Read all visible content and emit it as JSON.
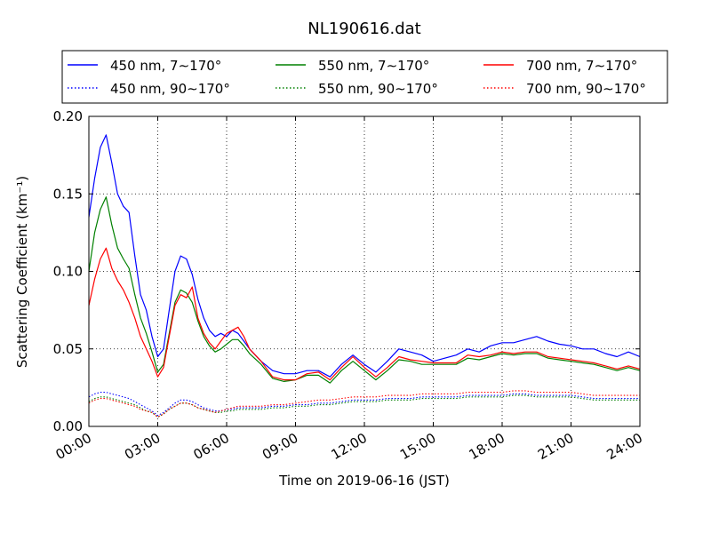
{
  "chart_data": {
    "type": "line",
    "title": "NL190616.dat",
    "xlabel": "Time on 2019-06-16 (JST)",
    "ylabel": "Scattering Coefficient (km⁻¹)",
    "xlim": [
      0,
      24
    ],
    "ylim": [
      0,
      0.2
    ],
    "x_tick_values": [
      0,
      3,
      6,
      9,
      12,
      15,
      18,
      21,
      24
    ],
    "x_tick_labels": [
      "00:00",
      "03:00",
      "06:00",
      "09:00",
      "12:00",
      "15:00",
      "18:00",
      "21:00",
      "24:00"
    ],
    "y_tick_values": [
      0,
      0.05,
      0.1,
      0.15,
      0.2
    ],
    "y_tick_labels": [
      "0.00",
      "0.05",
      "0.10",
      "0.15",
      "0.20"
    ],
    "grid": true,
    "legend_position": "top",
    "x": [
      0,
      0.25,
      0.5,
      0.75,
      1,
      1.25,
      1.5,
      1.75,
      2,
      2.25,
      2.5,
      2.75,
      3,
      3.25,
      3.5,
      3.75,
      4,
      4.25,
      4.5,
      4.75,
      5,
      5.25,
      5.5,
      5.75,
      6,
      6.25,
      6.5,
      6.75,
      7,
      7.5,
      8,
      8.5,
      9,
      9.5,
      10,
      10.5,
      11,
      11.5,
      12,
      12.5,
      13,
      13.5,
      14,
      14.5,
      15,
      15.5,
      16,
      16.5,
      17,
      17.5,
      18,
      18.5,
      19,
      19.5,
      20,
      20.5,
      21,
      21.5,
      22,
      22.5,
      23,
      23.5,
      24
    ],
    "series": [
      {
        "name": "450 nm, 7∼170°",
        "color": "#0000ff",
        "style": "solid",
        "values": [
          0.135,
          0.16,
          0.18,
          0.188,
          0.17,
          0.15,
          0.142,
          0.138,
          0.11,
          0.085,
          0.075,
          0.058,
          0.045,
          0.05,
          0.075,
          0.1,
          0.11,
          0.108,
          0.098,
          0.082,
          0.07,
          0.062,
          0.058,
          0.06,
          0.058,
          0.062,
          0.06,
          0.055,
          0.05,
          0.042,
          0.036,
          0.034,
          0.034,
          0.036,
          0.036,
          0.032,
          0.04,
          0.046,
          0.04,
          0.035,
          0.042,
          0.05,
          0.048,
          0.046,
          0.042,
          0.044,
          0.046,
          0.05,
          0.048,
          0.052,
          0.054,
          0.054,
          0.056,
          0.058,
          0.055,
          0.053,
          0.052,
          0.05,
          0.05,
          0.047,
          0.045,
          0.048,
          0.045
        ]
      },
      {
        "name": "450 nm, 90∼170°",
        "color": "#0000ff",
        "style": "dotted",
        "values": [
          0.019,
          0.021,
          0.022,
          0.022,
          0.021,
          0.02,
          0.019,
          0.018,
          0.016,
          0.014,
          0.012,
          0.01,
          0.007,
          0.009,
          0.012,
          0.015,
          0.017,
          0.017,
          0.016,
          0.014,
          0.012,
          0.011,
          0.01,
          0.01,
          0.011,
          0.011,
          0.012,
          0.012,
          0.012,
          0.012,
          0.013,
          0.013,
          0.014,
          0.014,
          0.015,
          0.015,
          0.016,
          0.017,
          0.017,
          0.017,
          0.018,
          0.018,
          0.018,
          0.019,
          0.019,
          0.019,
          0.019,
          0.02,
          0.02,
          0.02,
          0.02,
          0.021,
          0.021,
          0.02,
          0.02,
          0.02,
          0.02,
          0.019,
          0.018,
          0.018,
          0.018,
          0.018,
          0.018
        ]
      },
      {
        "name": "550 nm, 7∼170°",
        "color": "#008000",
        "style": "solid",
        "values": [
          0.1,
          0.125,
          0.14,
          0.148,
          0.13,
          0.115,
          0.108,
          0.102,
          0.085,
          0.07,
          0.06,
          0.048,
          0.035,
          0.04,
          0.06,
          0.08,
          0.088,
          0.086,
          0.08,
          0.068,
          0.058,
          0.052,
          0.048,
          0.05,
          0.053,
          0.056,
          0.056,
          0.052,
          0.047,
          0.04,
          0.031,
          0.029,
          0.03,
          0.033,
          0.033,
          0.028,
          0.036,
          0.042,
          0.036,
          0.03,
          0.036,
          0.043,
          0.042,
          0.04,
          0.04,
          0.04,
          0.04,
          0.044,
          0.043,
          0.045,
          0.047,
          0.046,
          0.047,
          0.047,
          0.044,
          0.043,
          0.042,
          0.041,
          0.04,
          0.038,
          0.036,
          0.038,
          0.036
        ]
      },
      {
        "name": "550 nm, 90∼170°",
        "color": "#008000",
        "style": "dotted",
        "values": [
          0.016,
          0.018,
          0.019,
          0.019,
          0.018,
          0.017,
          0.016,
          0.015,
          0.014,
          0.012,
          0.01,
          0.009,
          0.006,
          0.008,
          0.011,
          0.013,
          0.015,
          0.015,
          0.014,
          0.012,
          0.011,
          0.01,
          0.009,
          0.009,
          0.01,
          0.01,
          0.011,
          0.011,
          0.011,
          0.011,
          0.012,
          0.012,
          0.013,
          0.013,
          0.014,
          0.014,
          0.015,
          0.016,
          0.016,
          0.016,
          0.017,
          0.017,
          0.017,
          0.018,
          0.018,
          0.018,
          0.018,
          0.019,
          0.019,
          0.019,
          0.019,
          0.02,
          0.02,
          0.019,
          0.019,
          0.019,
          0.019,
          0.018,
          0.017,
          0.017,
          0.017,
          0.017,
          0.017
        ]
      },
      {
        "name": "700 nm, 7∼170°",
        "color": "#ff0000",
        "style": "solid",
        "values": [
          0.078,
          0.095,
          0.108,
          0.115,
          0.102,
          0.094,
          0.088,
          0.08,
          0.07,
          0.058,
          0.05,
          0.042,
          0.032,
          0.038,
          0.058,
          0.078,
          0.085,
          0.083,
          0.09,
          0.07,
          0.06,
          0.054,
          0.05,
          0.055,
          0.06,
          0.062,
          0.064,
          0.058,
          0.05,
          0.042,
          0.032,
          0.03,
          0.03,
          0.034,
          0.035,
          0.03,
          0.038,
          0.045,
          0.038,
          0.032,
          0.038,
          0.045,
          0.043,
          0.042,
          0.041,
          0.041,
          0.041,
          0.046,
          0.045,
          0.046,
          0.048,
          0.047,
          0.048,
          0.048,
          0.045,
          0.044,
          0.043,
          0.042,
          0.041,
          0.039,
          0.037,
          0.039,
          0.037
        ]
      },
      {
        "name": "700 nm, 90∼170°",
        "color": "#ff0000",
        "style": "dotted",
        "values": [
          0.015,
          0.017,
          0.018,
          0.018,
          0.017,
          0.016,
          0.015,
          0.014,
          0.013,
          0.011,
          0.01,
          0.009,
          0.006,
          0.008,
          0.011,
          0.013,
          0.015,
          0.015,
          0.014,
          0.012,
          0.011,
          0.01,
          0.009,
          0.01,
          0.011,
          0.012,
          0.013,
          0.013,
          0.013,
          0.013,
          0.014,
          0.014,
          0.015,
          0.016,
          0.017,
          0.017,
          0.018,
          0.019,
          0.019,
          0.019,
          0.02,
          0.02,
          0.02,
          0.021,
          0.021,
          0.021,
          0.021,
          0.022,
          0.022,
          0.022,
          0.022,
          0.023,
          0.023,
          0.022,
          0.022,
          0.022,
          0.022,
          0.021,
          0.02,
          0.02,
          0.02,
          0.02,
          0.02
        ]
      }
    ]
  }
}
